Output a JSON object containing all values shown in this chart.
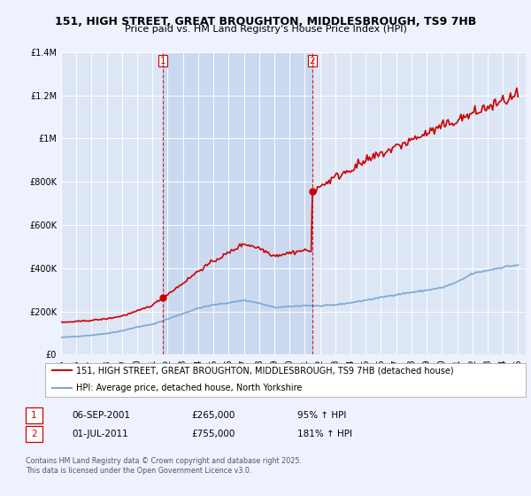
{
  "title_line1": "151, HIGH STREET, GREAT BROUGHTON, MIDDLESBROUGH, TS9 7HB",
  "title_line2": "Price paid vs. HM Land Registry's House Price Index (HPI)",
  "legend_label_red": "151, HIGH STREET, GREAT BROUGHTON, MIDDLESBROUGH, TS9 7HB (detached house)",
  "legend_label_blue": "HPI: Average price, detached house, North Yorkshire",
  "footer": "Contains HM Land Registry data © Crown copyright and database right 2025.\nThis data is licensed under the Open Government Licence v3.0.",
  "sale1_label": "1",
  "sale1_date": "06-SEP-2001",
  "sale1_price": "£265,000",
  "sale1_hpi": "95% ↑ HPI",
  "sale2_label": "2",
  "sale2_date": "01-JUL-2011",
  "sale2_price": "£755,000",
  "sale2_hpi": "181% ↑ HPI",
  "sale1_year": 2001.671,
  "sale2_year": 2011.497,
  "sale1_price_val": 265000,
  "sale2_price_val": 755000,
  "ylim": [
    0,
    1400000
  ],
  "xlim": [
    1995.0,
    2025.5
  ],
  "background_color": "#eef2ff",
  "plot_bg_color": "#dce6f5",
  "highlight_color": "#c8d8f0",
  "red_color": "#cc0000",
  "blue_color": "#7aa8d4",
  "vline_color": "#cc0000",
  "grid_color": "#ffffff",
  "title_fontsize": 9,
  "subtitle_fontsize": 8,
  "tick_fontsize": 7,
  "legend_fontsize": 7
}
